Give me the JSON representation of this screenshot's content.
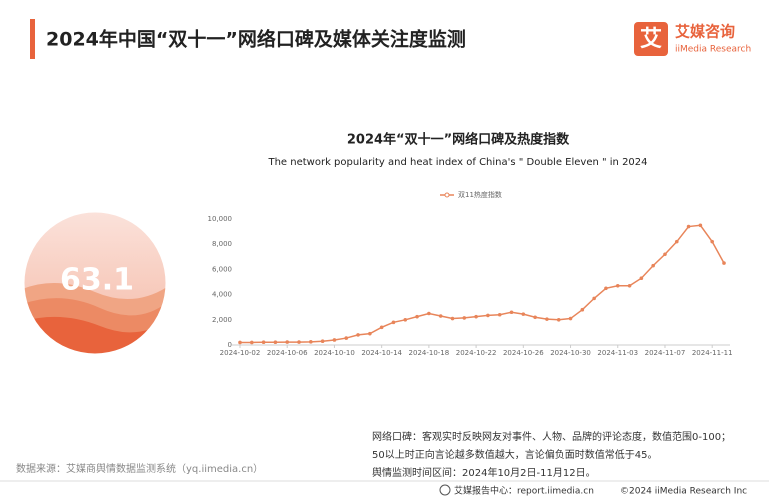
{
  "header": {
    "title": "2024年中国“双十一”网络口碑及媒体关注度监测",
    "logo_cn": "艾媒咨询",
    "logo_en": "iiMedia Research",
    "logo_mark": "艾"
  },
  "gauge": {
    "value": "63.1"
  },
  "chart_data": {
    "type": "line",
    "title": "2024年“双十一”网络口碑及热度指数",
    "subtitle": "The network popularity and heat index of China's \" Double Eleven \" in 2024",
    "x": [
      "2024-10-02",
      "2024-10-03",
      "2024-10-04",
      "2024-10-05",
      "2024-10-06",
      "2024-10-07",
      "2024-10-08",
      "2024-10-09",
      "2024-10-10",
      "2024-10-11",
      "2024-10-12",
      "2024-10-13",
      "2024-10-14",
      "2024-10-15",
      "2024-10-16",
      "2024-10-17",
      "2024-10-18",
      "2024-10-19",
      "2024-10-20",
      "2024-10-21",
      "2024-10-22",
      "2024-10-23",
      "2024-10-24",
      "2024-10-25",
      "2024-10-26",
      "2024-10-27",
      "2024-10-28",
      "2024-10-29",
      "2024-10-30",
      "2024-10-31",
      "2024-11-01",
      "2024-11-02",
      "2024-11-03",
      "2024-11-04",
      "2024-11-05",
      "2024-11-06",
      "2024-11-07",
      "2024-11-08",
      "2024-11-09",
      "2024-11-10",
      "2024-11-11",
      "2024-11-12"
    ],
    "series": [
      {
        "name": "双11热度指数",
        "color": "#e8855a",
        "values": [
          200,
          200,
          220,
          220,
          230,
          230,
          250,
          300,
          400,
          550,
          800,
          900,
          1400,
          1800,
          2000,
          2250,
          2500,
          2300,
          2100,
          2150,
          2250,
          2350,
          2400,
          2600,
          2450,
          2200,
          2050,
          2000,
          2100,
          2800,
          3700,
          4500,
          4700,
          4700,
          5300,
          6300,
          7200,
          8200,
          9400,
          9500,
          8200,
          6500
        ]
      }
    ],
    "xlim": [
      "2024-10-02",
      "2024-11-12"
    ],
    "xticks": [
      "2024-10-02",
      "2024-10-06",
      "2024-10-10",
      "2024-10-14",
      "2024-10-18",
      "2024-10-22",
      "2024-10-26",
      "2024-10-30",
      "2024-11-03",
      "2024-11-07",
      "2024-11-11"
    ],
    "ylim": [
      0,
      10000
    ],
    "yticks": [
      0,
      {
        "value": 2000,
        "label": "2,000"
      },
      {
        "value": 4000,
        "label": "4,000"
      },
      {
        "value": 6000,
        "label": "6,000"
      },
      {
        "value": 8000,
        "label": "8,000"
      },
      {
        "value": 10000,
        "label": "10,000"
      }
    ],
    "grid": false,
    "legend": "top"
  },
  "notes": [
    "网络口碑：客观实时反映网友对事件、人物、品牌的评论态度，数值范围0-100；",
    "50以上时正向言论越多数值越大，言论偏负面时数值常低于45。",
    "舆情监测时间区间：2024年10月2日-11月12日。"
  ],
  "source": "数据来源：艾媒商舆情数据监测系统（yq.iimedia.cn）",
  "footer": {
    "left": "艾媒报告中心：report.iimedia.cn",
    "right": "©2024  iiMedia Research  Inc"
  }
}
